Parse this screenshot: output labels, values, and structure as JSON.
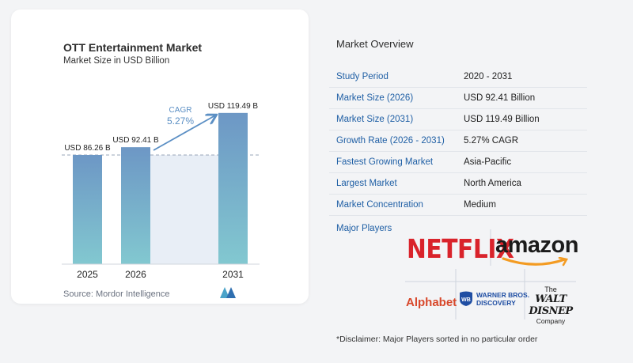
{
  "colors": {
    "bar_top": "#6d97c5",
    "bar_bottom": "#82c8d0",
    "accent_blue": "#1f5fa5",
    "cagr_text": "#5b8fc4",
    "netflix_red": "#d9232b",
    "alphabet_red": "#d8482b",
    "wb_blue": "#1f4ea3"
  },
  "chart": {
    "title": "OTT Entertainment Market",
    "subtitle": "Market Size in USD Billion",
    "source": "Source:  Mordor Intelligence",
    "cagr_label": "CAGR",
    "cagr_value": "5.27%"
  },
  "chart_data": {
    "type": "bar",
    "categories": [
      "2025",
      "2026",
      "2031"
    ],
    "values": [
      86.26,
      92.41,
      119.49
    ],
    "data_labels": [
      "USD 86.26 B",
      "USD 92.41 B",
      "USD 119.49 B"
    ],
    "title": "OTT Entertainment Market",
    "subtitle": "Market Size in USD Billion",
    "ylim": [
      0,
      125
    ],
    "grid": false,
    "annotation": {
      "text": "CAGR",
      "value": "5.27%",
      "from": "2026",
      "to": "2031"
    }
  },
  "overview": {
    "title": "Market Overview",
    "rows": [
      {
        "label": "Study Period",
        "value": "2020 - 2031"
      },
      {
        "label": "Market Size (2026)",
        "value": "USD 92.41 Billion"
      },
      {
        "label": "Market Size (2031)",
        "value": "USD 119.49 Billion"
      },
      {
        "label": "Growth Rate (2026 - 2031)",
        "value": "5.27% CAGR"
      },
      {
        "label": "Fastest Growing Market",
        "value": "Asia-Pacific"
      },
      {
        "label": "Largest Market",
        "value": "North America"
      },
      {
        "label": "Market Concentration",
        "value": "Medium"
      }
    ],
    "players_label": "Major Players",
    "disclaimer": "*Disclaimer: Major Players sorted in no particular order"
  },
  "players": {
    "netflix": "NETFLIX",
    "amazon": "amazon",
    "alphabet": "Alphabet",
    "wb_line1": "WARNER BROS.",
    "wb_line2": "DISCOVERY",
    "wb_badge": "WB",
    "disney_the": "The",
    "disney_name": "WALT DISNEP",
    "disney_company": "Company"
  }
}
